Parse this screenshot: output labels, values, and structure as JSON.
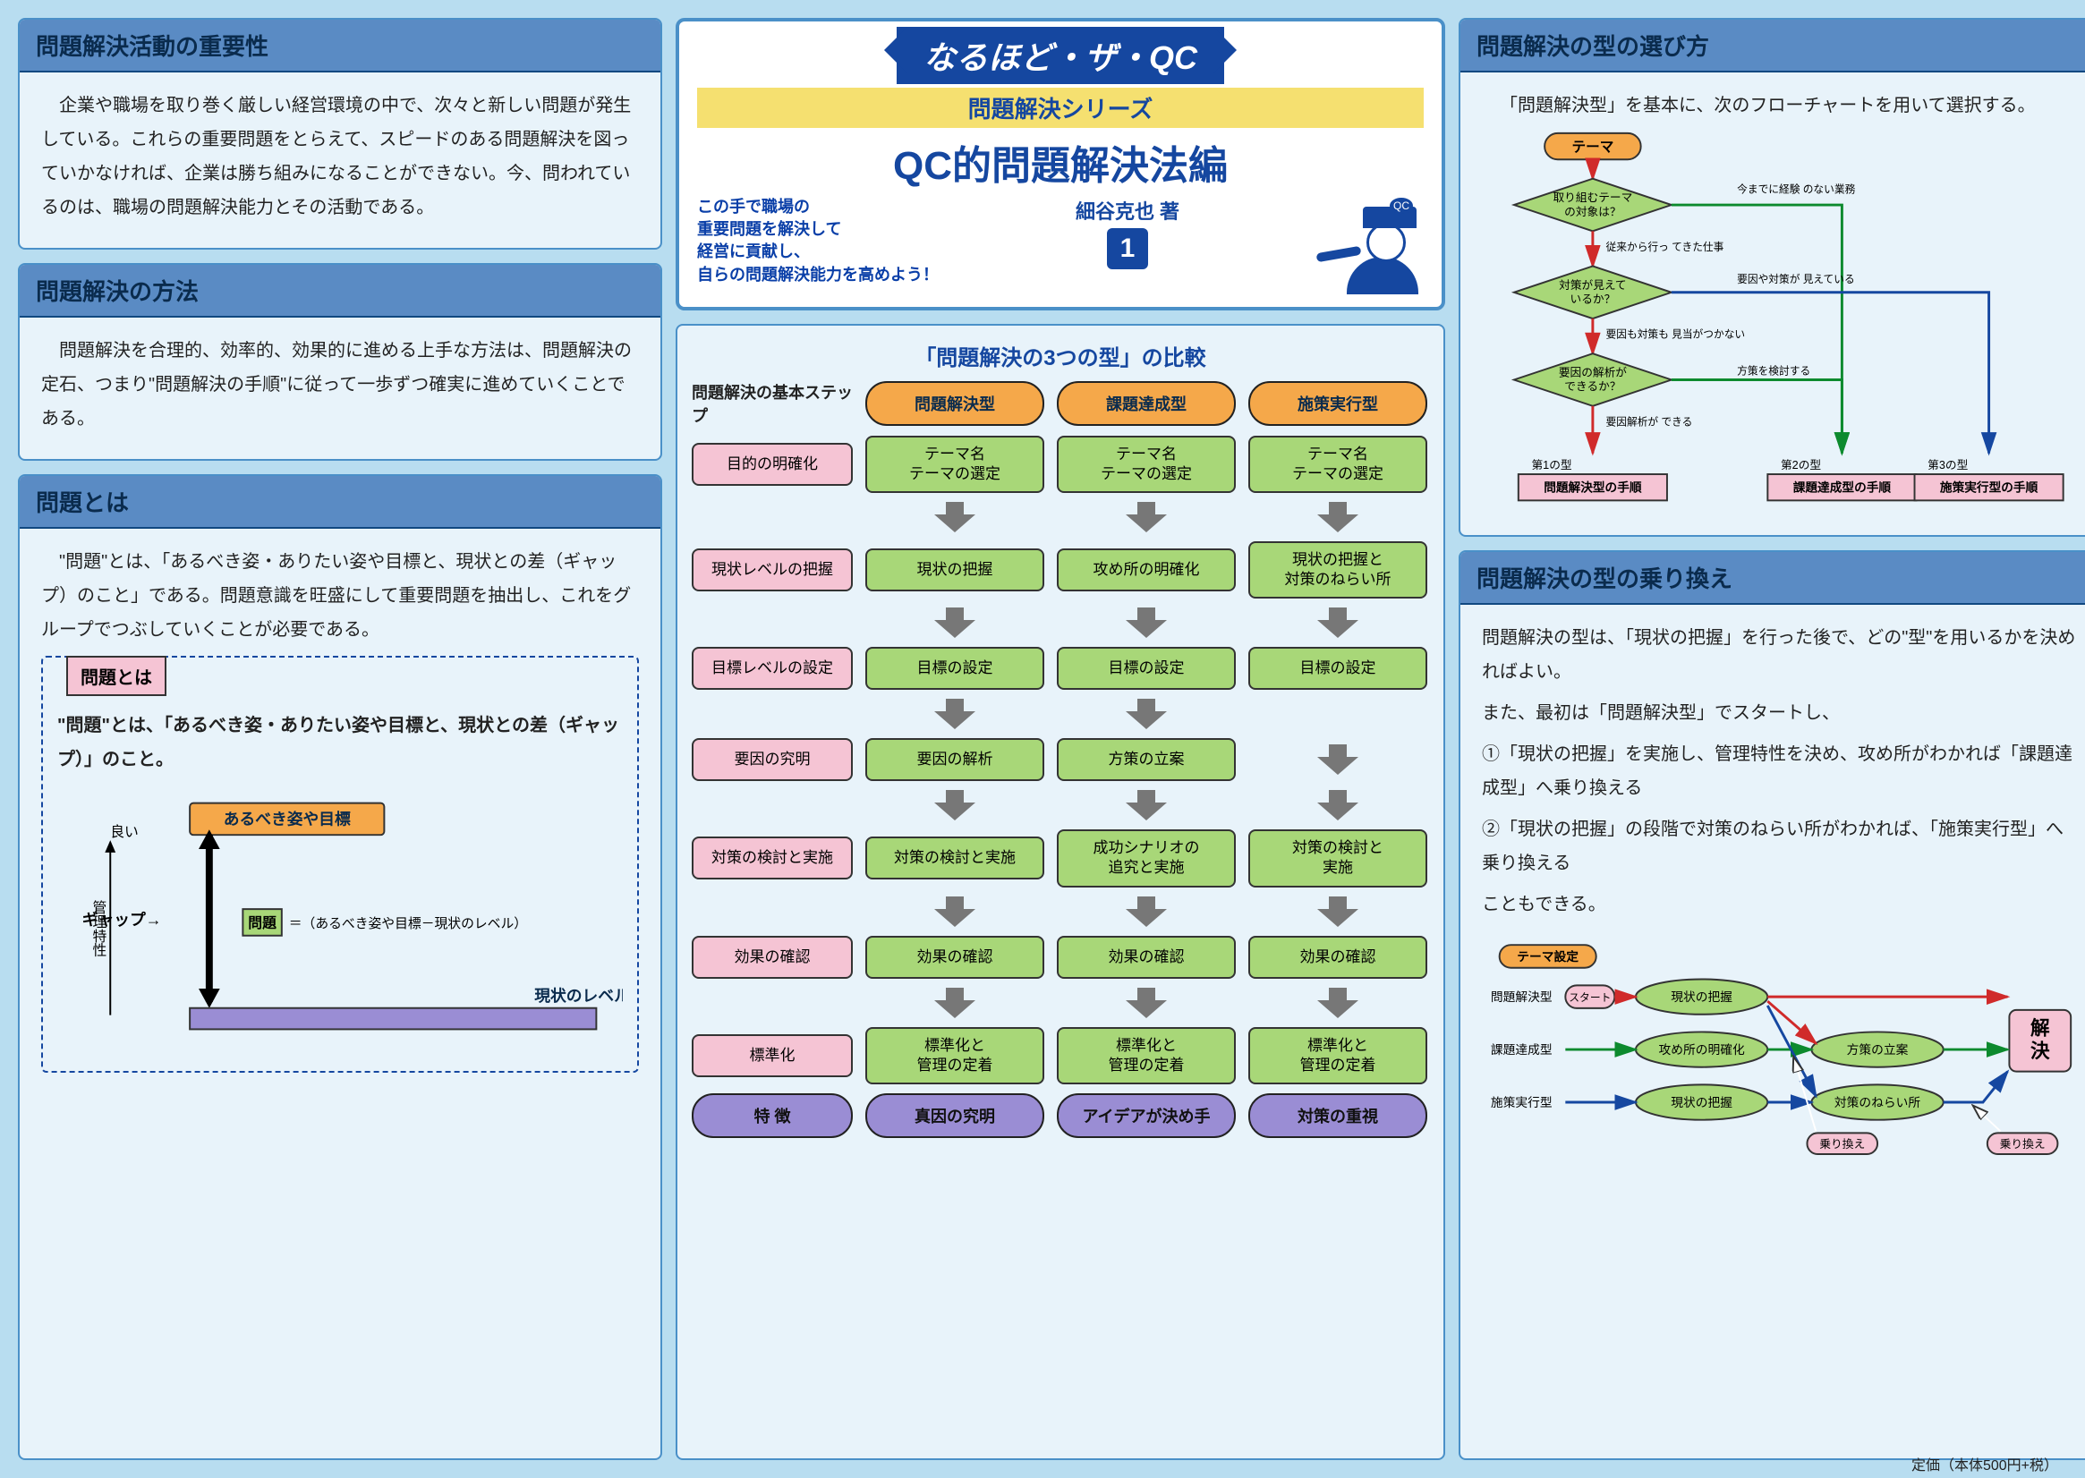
{
  "colors": {
    "page_bg": "#b8ddf0",
    "panel_bg": "#e8f3fa",
    "panel_border": "#4a90c8",
    "header_bg": "#5a8bc4",
    "header_text": "#0a2b4d",
    "ribbon_bg": "#1547a0",
    "subtitle_bg": "#f5e070",
    "pink": "#f5c4d4",
    "green": "#a8d778",
    "orange": "#f5a84a",
    "purple": "#9a8dd4",
    "arrow_grey": "#666666",
    "red": "#d02a2a",
    "green_line": "#0d8a2e",
    "blue_line": "#1547a0"
  },
  "left": {
    "s1": {
      "title": "問題解決活動の重要性",
      "body": "企業や職場を取り巻く厳しい経営環境の中で、次々と新しい問題が発生している。これらの重要問題をとらえて、スピードのある問題解決を図っていかなければ、企業は勝ち組みになることができない。今、問われているのは、職場の問題解決能力とその活動である。"
    },
    "s2": {
      "title": "問題解決の方法",
      "body": "問題解決を合理的、効率的、効果的に進める上手な方法は、問題解決の定石、つまり\"問題解決の手順\"に従って一歩ずつ確実に進めていくことである。"
    },
    "s3": {
      "title": "問題とは",
      "body": "\"問題\"とは、「あるべき姿・ありたい姿や目標と、現状との差（ギャップ）のこと」である。問題意識を旺盛にして重要問題を抽出し、これをグループでつぶしていくことが必要である。"
    },
    "gap": {
      "title": "問題とは",
      "desc": "\"問題\"とは、「あるべき姿・ありたい姿や目標と、現状との差（ギャップ）」のこと。",
      "top_label": "あるべき姿や目標",
      "gap_label": "ギャップ→",
      "problem_label": "問題",
      "equation": "＝（あるべき姿や目標－現状のレベル）",
      "bottom_label": "現状のレベル",
      "y_label": "管理特性",
      "good": "良い"
    }
  },
  "center": {
    "title": {
      "ribbon": "なるほど・ザ・QC",
      "subtitle": "問題解決シリーズ",
      "main": "QC的問題解決法編",
      "blurb1": "この手で職場の",
      "blurb2": "重要問題を解決して",
      "blurb3": "経営に貢献し、",
      "blurb4": "自らの問題解決能力を高めよう！",
      "author": "細谷克也 著",
      "vol": "1"
    },
    "compare": {
      "title": "「問題解決の3つの型」の比較",
      "steps_label": "問題解決の基本ステップ",
      "headers": [
        "問題解決型",
        "課題達成型",
        "施策実行型"
      ],
      "steps": [
        "目的の明確化",
        "現状レベルの把握",
        "目標レベルの設定",
        "要因の究明",
        "対策の検討と実施",
        "効果の確認",
        "標準化"
      ],
      "col1": [
        "テーマ名\nテーマの選定",
        "現状の把握",
        "目標の設定",
        "要因の解析",
        "対策の検討と実施",
        "効果の確認",
        "標準化と\n管理の定着"
      ],
      "col2_cells": [
        "テーマ名\nテーマの選定",
        "攻め所の明確化",
        "目標の設定",
        "方策の立案",
        "成功シナリオの\n追究と実施",
        "効果の確認",
        "標準化と\n管理の定着"
      ],
      "col3": [
        "テーマ名\nテーマの選定",
        "現状の把握と\n対策のねらい所",
        "目標の設定",
        "",
        "対策の検討と\n実施",
        "効果の確認",
        "標準化と\n管理の定着"
      ],
      "footers": [
        "特 徴",
        "真因の究明",
        "アイデアが決め手",
        "対策の重視"
      ]
    }
  },
  "right": {
    "s1": {
      "title": "問題解決の型の選び方",
      "body": "「問題解決型」を基本に、次のフローチャートを用いて選択する。",
      "flow": {
        "start": "テーマ",
        "d1": "取り組むテーマ\nの対象は？",
        "d1_right": "今までに経験\nのない業務",
        "d1_down": "従来から行っ\nてきた仕事",
        "d2": "対策が見えて\nいるか？",
        "d2_right": "要因や対策が\n見えている",
        "d2_down": "要因も対策も\n見当がつかない",
        "d3": "要因の解析が\nできるか？",
        "d3_right": "方策を検討する",
        "d3_down": "要因解析が\nできる",
        "end_label1": "第1の型",
        "end1": "問題解決型の手順",
        "end_label2": "第2の型",
        "end2": "課題達成型の手順",
        "end_label3": "第3の型",
        "end3": "施策実行型の手順"
      }
    },
    "s2": {
      "title": "問題解決の型の乗り換え",
      "body1": "問題解決の型は、「現状の把握」を行った後で、どの\"型\"を用いるかを決めればよい。",
      "body2": "また、最初は「問題解決型」でスタートし、",
      "body3": "①「現状の把握」を実施し、管理特性を決め、攻め所がわかれば「課題達成型」へ乗り換える",
      "body4": "②「現状の把握」の段階で対策のねらい所がわかれば、「施策実行型」へ乗り換える",
      "body5": "こともできる。",
      "swap": {
        "start": "テーマ設定",
        "row1_lbl": "問題解決型",
        "row2_lbl": "課題達成型",
        "row3_lbl": "施策実行型",
        "start_pill": "スタート",
        "n1": "現状の把握",
        "n2": "攻め所の明確化",
        "n3": "方策の立案",
        "n4": "現状の把握",
        "n5": "対策のねらい所",
        "end": "解決",
        "transfer": "乗り換え"
      }
    }
  },
  "price": "定価（本体500円+税）"
}
